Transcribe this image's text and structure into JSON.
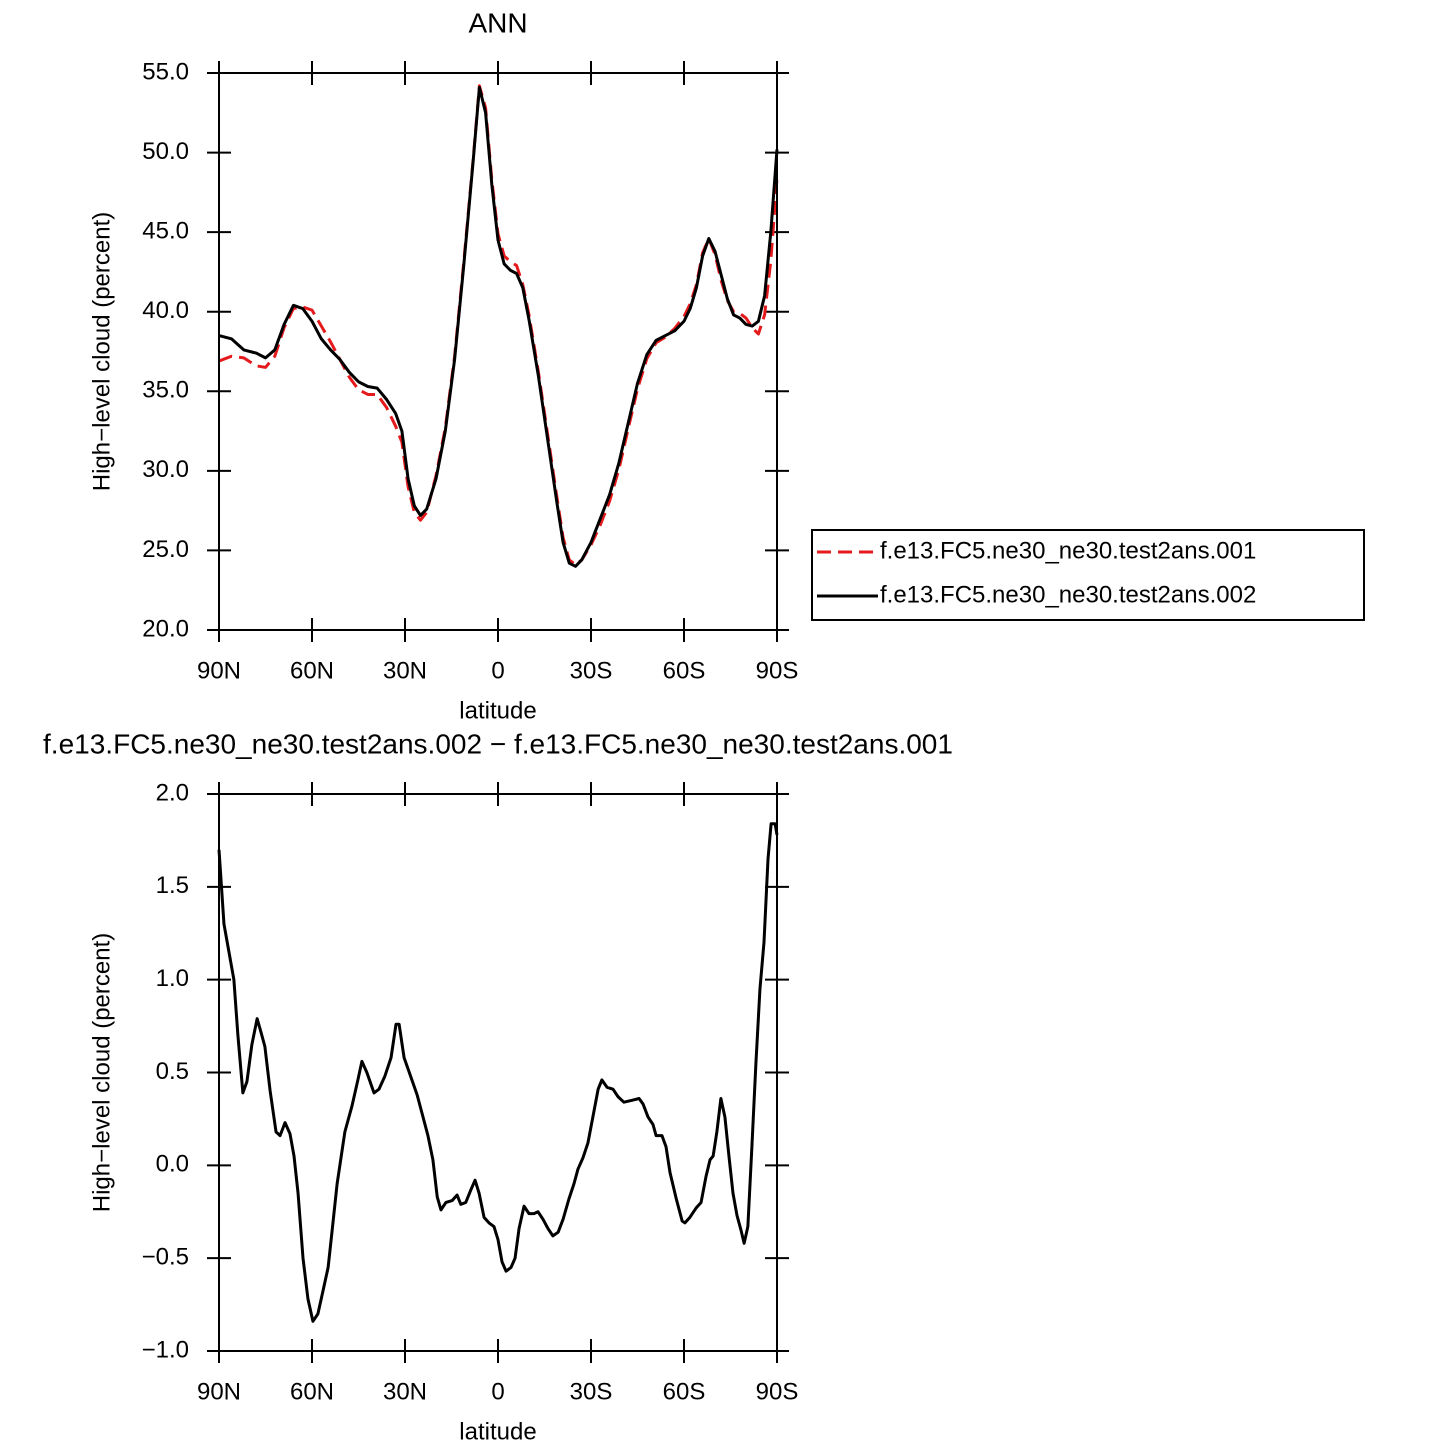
{
  "chart_data": [
    {
      "type": "line",
      "title": "ANN",
      "xlabel": "latitude",
      "ylabel": "High−level cloud (percent)",
      "x": [
        90,
        86,
        82,
        78,
        75,
        72,
        69,
        66,
        63,
        60,
        57,
        54,
        51,
        48,
        45,
        42,
        39,
        36,
        33,
        31,
        29,
        27,
        25,
        23,
        20,
        17,
        14,
        11,
        8,
        6,
        4,
        2,
        0,
        -2,
        -4,
        -6,
        -8,
        -10,
        -13,
        -16,
        -19,
        -21,
        -23,
        -25,
        -27,
        -30,
        -33,
        -36,
        -39,
        -42,
        -45,
        -48,
        -51,
        -54,
        -57,
        -60,
        -62,
        -64,
        -66,
        -68,
        -70,
        -72,
        -74,
        -76,
        -78,
        -80,
        -82,
        -84,
        -86,
        -88,
        -90
      ],
      "series": [
        {
          "name": "f.e13.FC5.ne30_ne30.test2ans.001",
          "color": "#e41a1c",
          "dashed": true,
          "values": [
            36.9,
            37.2,
            37.1,
            36.6,
            36.5,
            37.2,
            39.0,
            40.2,
            40.3,
            40.1,
            39.1,
            38.1,
            37.0,
            35.9,
            35.1,
            34.8,
            34.8,
            34.0,
            32.8,
            31.8,
            29.0,
            27.4,
            26.9,
            27.4,
            29.7,
            32.7,
            37.2,
            43.2,
            49.6,
            54.2,
            52.8,
            48.3,
            44.9,
            43.5,
            43.15,
            42.9,
            41.7,
            39.8,
            36.25,
            32.3,
            28.35,
            25.8,
            24.4,
            24.1,
            24.4,
            25.35,
            26.6,
            28.1,
            30.1,
            32.65,
            35.15,
            37.05,
            38.05,
            38.4,
            38.95,
            39.7,
            40.5,
            41.7,
            43.7,
            44.6,
            43.6,
            41.95,
            40.7,
            40.0,
            39.9,
            39.6,
            39.0,
            38.6,
            39.8,
            43.2,
            48.4
          ]
        },
        {
          "name": "f.e13.FC5.ne30_ne30.test2ans.002",
          "color": "#000000",
          "dashed": false,
          "values": [
            38.5,
            38.3,
            37.6,
            37.4,
            37.1,
            37.6,
            39.2,
            40.4,
            40.2,
            39.4,
            38.3,
            37.6,
            37.0,
            36.2,
            35.6,
            35.3,
            35.2,
            34.5,
            33.6,
            32.5,
            29.5,
            27.8,
            27.2,
            27.6,
            29.5,
            32.5,
            37.0,
            43.0,
            49.5,
            54.1,
            52.5,
            48.0,
            44.5,
            43.0,
            42.6,
            42.4,
            41.5,
            39.5,
            36.0,
            32.0,
            28.0,
            25.5,
            24.2,
            24.0,
            24.4,
            25.5,
            27.0,
            28.5,
            30.5,
            33.0,
            35.5,
            37.3,
            38.2,
            38.5,
            38.8,
            39.4,
            40.2,
            41.5,
            43.5,
            44.6,
            43.8,
            42.3,
            40.8,
            39.8,
            39.6,
            39.2,
            39.1,
            39.4,
            41.0,
            45.0,
            50.2
          ]
        }
      ],
      "xlim": [
        90,
        -90
      ],
      "xticks": [
        {
          "value": 90,
          "label": "90N"
        },
        {
          "value": 60,
          "label": "60N"
        },
        {
          "value": 30,
          "label": "30N"
        },
        0,
        {
          "value": -30,
          "label": "30S"
        },
        {
          "value": -60,
          "label": "60S"
        },
        {
          "value": -90,
          "label": "90S"
        }
      ],
      "ylim": [
        20,
        55
      ],
      "yticks": [
        {
          "value": 20,
          "label": "20.0"
        },
        {
          "value": 25,
          "label": "25.0"
        },
        {
          "value": 30,
          "label": "30.0"
        },
        {
          "value": 35,
          "label": "35.0"
        },
        {
          "value": 40,
          "label": "40.0"
        },
        {
          "value": 45,
          "label": "45.0"
        },
        {
          "value": 50,
          "label": "50.0"
        },
        {
          "value": 55,
          "label": "55.0"
        }
      ]
    },
    {
      "type": "line",
      "title": "f.e13.FC5.ne30_ne30.test2ans.002 − f.e13.FC5.ne30_ne30.test2ans.001",
      "xlabel": "latitude",
      "ylabel": "High−level cloud (percent)",
      "color": "#000000",
      "x": [
        90,
        88.4,
        86.8,
        85.2,
        83.9,
        82.3,
        81,
        79.4,
        77.7,
        76.5,
        75.2,
        73.5,
        71.6,
        70.3,
        68.7,
        67.1,
        65.8,
        64.5,
        62.9,
        61.3,
        59.7,
        58.1,
        56.5,
        54.8,
        53.5,
        51.9,
        49.4,
        47.1,
        45.2,
        43.9,
        42.3,
        40,
        38.4,
        36.5,
        34.5,
        32.9,
        31.9,
        30.3,
        28.4,
        26.1,
        24.5,
        22.6,
        21,
        19.6,
        18.4,
        16.8,
        14.8,
        13.2,
        12,
        10.4,
        8.7,
        7.4,
        6.1,
        4.5,
        2.9,
        1.3,
        0,
        -1.3,
        -2.6,
        -4.2,
        -5.5,
        -6.8,
        -8.4,
        -10,
        -11.6,
        -12.9,
        -14.5,
        -16.1,
        -17.7,
        -19.4,
        -21,
        -22.9,
        -24.5,
        -25.8,
        -27.4,
        -29,
        -30.6,
        -32.3,
        -33.5,
        -35.2,
        -37.1,
        -38.7,
        -40.6,
        -43.2,
        -45.5,
        -46.8,
        -48.4,
        -50,
        -51,
        -52.9,
        -54.2,
        -55.5,
        -57.5,
        -59.4,
        -60.3,
        -61.9,
        -63.9,
        -65.5,
        -67.1,
        -68.4,
        -69.4,
        -70.6,
        -71.9,
        -73.2,
        -74.5,
        -75.8,
        -77.1,
        -78.4,
        -79.4,
        -80.6,
        -81.9,
        -83.2,
        -84.5,
        -85.8,
        -87.1,
        -88.1,
        -89.4,
        -90
      ],
      "values": [
        1.7,
        1.3,
        1.15,
        1.0,
        0.7,
        0.39,
        0.45,
        0.65,
        0.79,
        0.72,
        0.64,
        0.4,
        0.18,
        0.16,
        0.23,
        0.17,
        0.05,
        -0.15,
        -0.5,
        -0.72,
        -0.84,
        -0.8,
        -0.68,
        -0.55,
        -0.35,
        -0.1,
        0.18,
        0.32,
        0.46,
        0.56,
        0.5,
        0.39,
        0.41,
        0.48,
        0.58,
        0.76,
        0.76,
        0.58,
        0.49,
        0.38,
        0.28,
        0.16,
        0.03,
        -0.17,
        -0.24,
        -0.2,
        -0.19,
        -0.16,
        -0.21,
        -0.2,
        -0.13,
        -0.08,
        -0.15,
        -0.28,
        -0.31,
        -0.33,
        -0.4,
        -0.52,
        -0.57,
        -0.55,
        -0.5,
        -0.34,
        -0.22,
        -0.26,
        -0.26,
        -0.25,
        -0.29,
        -0.34,
        -0.38,
        -0.36,
        -0.29,
        -0.18,
        -0.1,
        -0.02,
        0.04,
        0.12,
        0.26,
        0.41,
        0.46,
        0.42,
        0.41,
        0.37,
        0.34,
        0.35,
        0.36,
        0.33,
        0.26,
        0.22,
        0.16,
        0.16,
        0.1,
        -0.04,
        -0.18,
        -0.3,
        -0.31,
        -0.28,
        -0.23,
        -0.2,
        -0.06,
        0.03,
        0.05,
        0.18,
        0.36,
        0.26,
        0.05,
        -0.15,
        -0.27,
        -0.35,
        -0.42,
        -0.33,
        0.1,
        0.55,
        0.95,
        1.2,
        1.65,
        1.84,
        1.84,
        1.78
      ],
      "xlim": [
        90,
        -90
      ],
      "xticks": [
        {
          "value": 90,
          "label": "90N"
        },
        {
          "value": 60,
          "label": "60N"
        },
        {
          "value": 30,
          "label": "30N"
        },
        0,
        {
          "value": -30,
          "label": "30S"
        },
        {
          "value": -60,
          "label": "60S"
        },
        {
          "value": -90,
          "label": "90S"
        }
      ],
      "ylim": [
        -1,
        2
      ],
      "yticks": [
        {
          "value": -1,
          "label": "−1.0"
        },
        {
          "value": -0.5,
          "label": "−0.5"
        },
        {
          "value": 0,
          "label": "0.0"
        },
        0.5,
        {
          "value": 1,
          "label": "1.0"
        },
        1.5,
        {
          "value": 2,
          "label": "2.0"
        }
      ]
    }
  ]
}
